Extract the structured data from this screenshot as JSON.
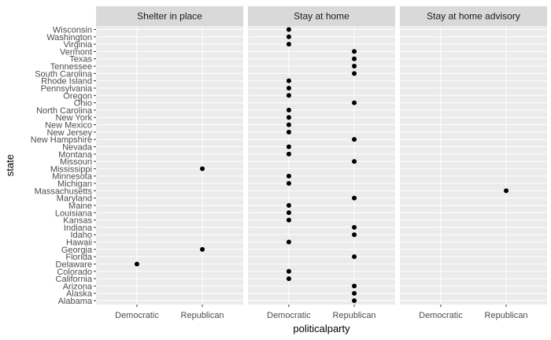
{
  "chart_data": {
    "type": "scatter",
    "facet_labels": [
      "Shelter in place",
      "Stay at home",
      "Stay at home advisory"
    ],
    "xlabel": "politicalparty",
    "ylabel": "state",
    "x_categories": [
      "Democratic",
      "Republican"
    ],
    "y_categories": [
      "Alabama",
      "Alaska",
      "Arizona",
      "California",
      "Colorado",
      "Delaware",
      "Florida",
      "Georgia",
      "Hawaii",
      "Idaho",
      "Indiana",
      "Kansas",
      "Louisiana",
      "Maine",
      "Maryland",
      "Massachusetts",
      "Michigan",
      "Minnesota",
      "Mississippi",
      "Missouri",
      "Montana",
      "Nevada",
      "New Hampshire",
      "New Jersey",
      "New Mexico",
      "New York",
      "North Carolina",
      "Ohio",
      "Oregon",
      "Pennsylvania",
      "Rhode Island",
      "South Carolina",
      "Tennessee",
      "Texas",
      "Vermont",
      "Virginia",
      "Washington",
      "Wisconsin"
    ],
    "grid": true,
    "points": [
      {
        "facet": "Shelter in place",
        "x": "Republican",
        "y": "Mississippi"
      },
      {
        "facet": "Shelter in place",
        "x": "Republican",
        "y": "Georgia"
      },
      {
        "facet": "Shelter in place",
        "x": "Democratic",
        "y": "Delaware"
      },
      {
        "facet": "Stay at home",
        "x": "Democratic",
        "y": "Wisconsin"
      },
      {
        "facet": "Stay at home",
        "x": "Democratic",
        "y": "Washington"
      },
      {
        "facet": "Stay at home",
        "x": "Democratic",
        "y": "Virginia"
      },
      {
        "facet": "Stay at home",
        "x": "Republican",
        "y": "Vermont"
      },
      {
        "facet": "Stay at home",
        "x": "Republican",
        "y": "Texas"
      },
      {
        "facet": "Stay at home",
        "x": "Republican",
        "y": "Tennessee"
      },
      {
        "facet": "Stay at home",
        "x": "Republican",
        "y": "South Carolina"
      },
      {
        "facet": "Stay at home",
        "x": "Democratic",
        "y": "Rhode Island"
      },
      {
        "facet": "Stay at home",
        "x": "Democratic",
        "y": "Pennsylvania"
      },
      {
        "facet": "Stay at home",
        "x": "Democratic",
        "y": "Oregon"
      },
      {
        "facet": "Stay at home",
        "x": "Republican",
        "y": "Ohio"
      },
      {
        "facet": "Stay at home",
        "x": "Democratic",
        "y": "North Carolina"
      },
      {
        "facet": "Stay at home",
        "x": "Democratic",
        "y": "New York"
      },
      {
        "facet": "Stay at home",
        "x": "Democratic",
        "y": "New Mexico"
      },
      {
        "facet": "Stay at home",
        "x": "Democratic",
        "y": "New Jersey"
      },
      {
        "facet": "Stay at home",
        "x": "Republican",
        "y": "New Hampshire"
      },
      {
        "facet": "Stay at home",
        "x": "Democratic",
        "y": "Nevada"
      },
      {
        "facet": "Stay at home",
        "x": "Democratic",
        "y": "Montana"
      },
      {
        "facet": "Stay at home",
        "x": "Republican",
        "y": "Missouri"
      },
      {
        "facet": "Stay at home",
        "x": "Democratic",
        "y": "Minnesota"
      },
      {
        "facet": "Stay at home",
        "x": "Democratic",
        "y": "Michigan"
      },
      {
        "facet": "Stay at home",
        "x": "Republican",
        "y": "Maryland"
      },
      {
        "facet": "Stay at home",
        "x": "Democratic",
        "y": "Maine"
      },
      {
        "facet": "Stay at home",
        "x": "Democratic",
        "y": "Louisiana"
      },
      {
        "facet": "Stay at home",
        "x": "Democratic",
        "y": "Kansas"
      },
      {
        "facet": "Stay at home",
        "x": "Republican",
        "y": "Indiana"
      },
      {
        "facet": "Stay at home",
        "x": "Republican",
        "y": "Idaho"
      },
      {
        "facet": "Stay at home",
        "x": "Democratic",
        "y": "Hawaii"
      },
      {
        "facet": "Stay at home",
        "x": "Republican",
        "y": "Florida"
      },
      {
        "facet": "Stay at home",
        "x": "Democratic",
        "y": "Colorado"
      },
      {
        "facet": "Stay at home",
        "x": "Democratic",
        "y": "California"
      },
      {
        "facet": "Stay at home",
        "x": "Republican",
        "y": "Arizona"
      },
      {
        "facet": "Stay at home",
        "x": "Republican",
        "y": "Alaska"
      },
      {
        "facet": "Stay at home",
        "x": "Republican",
        "y": "Alabama"
      },
      {
        "facet": "Stay at home advisory",
        "x": "Republican",
        "y": "Massachusetts"
      }
    ],
    "colors": {
      "panel_background": "#ebebeb",
      "strip_background": "#d9d9d9",
      "grid": "#ffffff",
      "point": "#000000"
    }
  }
}
